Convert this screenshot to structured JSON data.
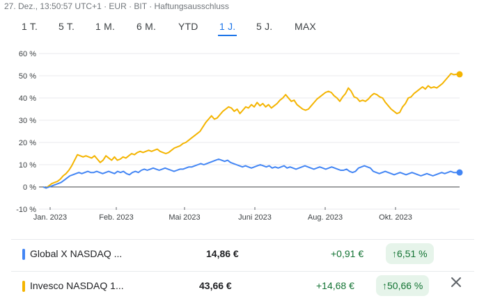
{
  "header": {
    "meta": "27. Dez., 13:50:57 UTC+1 · EUR · BIT · Haftungsausschluss"
  },
  "tabs": [
    {
      "label": "1 T."
    },
    {
      "label": "5 T."
    },
    {
      "label": "1 M."
    },
    {
      "label": "6 M."
    },
    {
      "label": "YTD"
    },
    {
      "label": "1 J.",
      "active": true
    },
    {
      "label": "5 J."
    },
    {
      "label": "MAX"
    }
  ],
  "chart_data": {
    "type": "line",
    "x_labels": [
      "Jan. 2023",
      "Feb. 2023",
      "Mai 2023",
      "Juni 2023",
      "Aug. 2023",
      "Okt. 2023"
    ],
    "ylim": [
      -10,
      60
    ],
    "y_ticks": [
      "60 %",
      "50 %",
      "40 %",
      "30 %",
      "20 %",
      "10 %",
      "0 %",
      "-10 %"
    ],
    "grid": true,
    "series": [
      {
        "name": "Invesco NASDAQ 1...",
        "color": "#f4b400",
        "values": [
          0,
          -0.5,
          0.5,
          1.5,
          2,
          2.5,
          3.5,
          5,
          6,
          7.5,
          9.5,
          12,
          14.5,
          14,
          13.5,
          14,
          13.5,
          13,
          14,
          12.5,
          11,
          12,
          14,
          13,
          12,
          13.5,
          12,
          12.5,
          13.5,
          13,
          14,
          15,
          14.5,
          15.5,
          16,
          15.5,
          16,
          16.5,
          16,
          16.5,
          17,
          16,
          15.5,
          15,
          15.5,
          16.5,
          17.5,
          18,
          18.5,
          19.5,
          20,
          21,
          22,
          23,
          24,
          25,
          27,
          29,
          30.5,
          32,
          30.5,
          31,
          32.5,
          34,
          35,
          36,
          35.5,
          34,
          35,
          33,
          34.5,
          36,
          35.5,
          37,
          36,
          38,
          36.5,
          37.5,
          36,
          37,
          35.5,
          36.5,
          37.5,
          39,
          40,
          41.5,
          40,
          38.5,
          39,
          37,
          36,
          35,
          34.5,
          35,
          36.5,
          38,
          39.5,
          40.5,
          41.5,
          42.5,
          43,
          42.5,
          41,
          40,
          38.5,
          40.5,
          42,
          44.5,
          43,
          40.5,
          40,
          38.5,
          39,
          38.5,
          39.5,
          41,
          42,
          41.5,
          40.5,
          40,
          38,
          36.5,
          35,
          34,
          33,
          33.5,
          36,
          37.5,
          40,
          40.5,
          42,
          43,
          44,
          45,
          44,
          45.5,
          44.5,
          45,
          44.5,
          45.5,
          46.5,
          48,
          49.5,
          51,
          50.5,
          50.7,
          50.66
        ],
        "end_value": 50.66
      },
      {
        "name": "Global X NASDAQ ...",
        "color": "#4285f4",
        "values": [
          0,
          -0.5,
          0,
          0.5,
          1,
          1.5,
          2,
          3,
          4,
          5,
          5.5,
          6,
          6.5,
          6,
          6.5,
          7,
          6.5,
          6.5,
          7,
          6.5,
          6,
          6.5,
          7,
          6.5,
          6,
          7,
          6.5,
          7,
          6,
          5.5,
          6.5,
          7,
          6.5,
          7.5,
          8,
          7.5,
          8,
          8.5,
          8,
          7.5,
          8,
          8.5,
          8,
          7.5,
          7,
          7.5,
          8,
          8,
          8.5,
          9,
          9,
          9.5,
          10,
          10.5,
          10,
          10.5,
          11,
          11.5,
          12,
          12.5,
          12,
          11.5,
          12,
          11,
          10.5,
          10,
          9.5,
          9,
          9.5,
          9,
          8.5,
          9,
          9.5,
          10,
          9.5,
          9,
          9.5,
          8.5,
          9,
          8.5,
          9,
          9.5,
          8.5,
          9,
          8.5,
          8,
          8.5,
          9,
          9.5,
          9,
          8.5,
          8,
          8.5,
          9,
          8.5,
          8,
          8.5,
          9,
          8.5,
          8,
          7.5,
          7.5,
          8,
          7,
          6.5,
          7,
          8.5,
          9,
          9.5,
          9,
          8.5,
          7,
          6.5,
          6,
          6.5,
          7,
          6.5,
          6,
          5.5,
          6,
          6.5,
          6,
          5.5,
          6,
          6.5,
          6,
          5.5,
          5,
          5.5,
          6,
          5.5,
          5,
          5.5,
          6,
          6.5,
          6,
          6.5,
          7,
          6.5,
          6.5,
          6.51
        ],
        "end_value": 6.51
      }
    ]
  },
  "legend_rows": [
    {
      "name": "Global X NASDAQ ...",
      "price": "14,86 €",
      "change": "+0,91 €",
      "percent": "6,51 %",
      "color": "#4285f4"
    },
    {
      "name": "Invesco NASDAQ 1...",
      "price": "43,66 €",
      "change": "+14,68 €",
      "percent": "50,66 %",
      "color": "#f4b400"
    }
  ],
  "icons": {
    "remove": "close-icon",
    "up": "arrow-up-icon"
  }
}
